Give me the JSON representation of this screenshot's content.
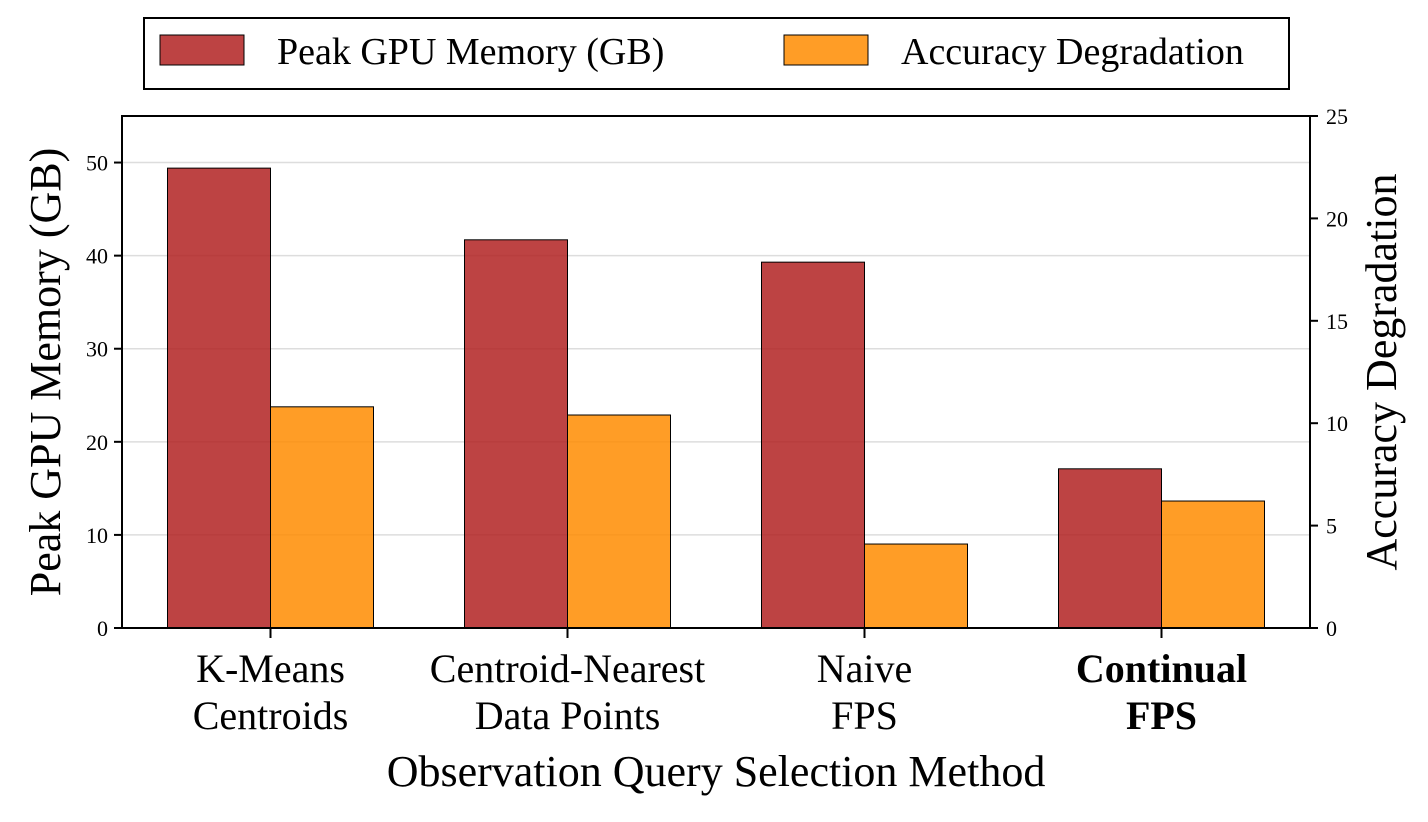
{
  "chart_data": {
    "type": "bar",
    "categories": [
      [
        "K-Means",
        "Centroids"
      ],
      [
        "Centroid-Nearest",
        "Data Points"
      ],
      [
        "Naive",
        "FPS"
      ],
      [
        "Continual",
        "FPS"
      ]
    ],
    "highlight_category_index": 3,
    "series": [
      {
        "name": "Peak GPU Memory (GB)",
        "axis": "left",
        "color": "#b22222",
        "values": [
          49.4,
          41.7,
          39.3,
          17.1
        ]
      },
      {
        "name": "Accuracy Degradation",
        "axis": "right",
        "color": "#ff8c00",
        "values": [
          10.8,
          10.4,
          4.1,
          6.2
        ]
      }
    ],
    "xlabel": "Observation Query Selection Method",
    "ylabel_left": "Peak GPU Memory (GB)",
    "ylabel_right": "Accuracy Degradation",
    "ylim_left": [
      0,
      55
    ],
    "ylim_right": [
      0,
      25
    ],
    "yticks_left": [
      0,
      10,
      20,
      30,
      40,
      50
    ],
    "yticks_right": [
      0,
      5,
      10,
      15,
      20,
      25
    ],
    "grid": "horizontal",
    "legend_position": "top-center"
  }
}
